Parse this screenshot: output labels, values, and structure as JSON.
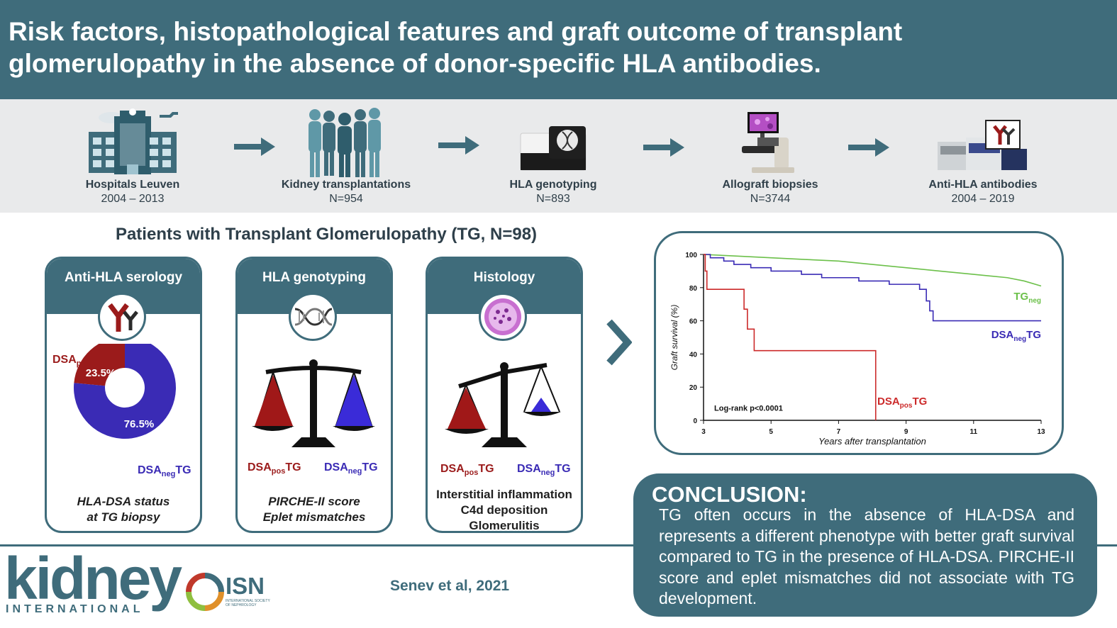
{
  "header": {
    "title_line1": "Risk factors, histopathological features and graft outcome of transplant",
    "title_line2": "glomerulopathy in the absence of donor-specific HLA antibodies."
  },
  "workflow": [
    {
      "label": "Hospitals Leuven",
      "value": "2004 – 2013",
      "icon": "hospital-icon"
    },
    {
      "label": "Kidney transplantations",
      "value": "N=954",
      "icon": "people-icon"
    },
    {
      "label": "HLA genotyping",
      "value": "N=893",
      "icon": "sequencer-icon"
    },
    {
      "label": "Allograft biopsies",
      "value": "N=3744",
      "icon": "microscope-icon"
    },
    {
      "label": "Anti-HLA antibodies",
      "value": "2004 – 2019",
      "icon": "lab-instrument-icon"
    }
  ],
  "cohort_title": "Patients with Transplant Glomerulopathy (TG, N=98)",
  "cards": {
    "serology": {
      "title": "Anti-HLA serology",
      "foot_line1": "HLA-DSA status",
      "foot_line2": "at TG biopsy",
      "pos_pct": "23.5%",
      "neg_pct": "76.5%",
      "icon": "antibody-icon"
    },
    "genotyping": {
      "title": "HLA genotyping",
      "foot_line1": "PIRCHE-II score",
      "foot_line2": "Eplet mismatches",
      "icon": "dna-icon"
    },
    "histology": {
      "title": "Histology",
      "foot_line1": "Interstitial inflammation",
      "foot_line2": "C4d deposition",
      "foot_line3": "Glomerulitis",
      "icon": "glomerulus-icon"
    }
  },
  "dsa_labels": {
    "pos_main": "DSA",
    "pos_sub": "pos",
    "pos_tail": "TG",
    "neg_main": "DSA",
    "neg_sub": "neg",
    "neg_tail": "TG"
  },
  "chart_data": [
    {
      "type": "pie",
      "categories": [
        "DSApos TG",
        "DSAneg TG"
      ],
      "values": [
        23.5,
        76.5
      ],
      "colors": [
        "#9b1b1b",
        "#3a2bb5"
      ]
    },
    {
      "type": "line",
      "xlabel": "Years after transplantation",
      "ylabel": "Graft survival (%)",
      "xlim": [
        3,
        13
      ],
      "ylim": [
        0,
        100
      ],
      "xticks": [
        3,
        5,
        7,
        9,
        11,
        13
      ],
      "yticks": [
        0,
        20,
        40,
        60,
        80,
        100
      ],
      "annotation": "Log-rank p<0.0001",
      "series": [
        {
          "name": "TGneg",
          "main": "TG",
          "sub": "neg",
          "tail": "",
          "color": "#6cc04a",
          "x": [
            3,
            4,
            5,
            6,
            7,
            8,
            9,
            10,
            11,
            12,
            12.5,
            13
          ],
          "y": [
            100,
            99,
            98,
            97,
            96,
            94,
            92,
            90,
            88,
            86,
            84,
            81
          ]
        },
        {
          "name": "DSAnegTG",
          "main": "DSA",
          "sub": "neg",
          "tail": "TG",
          "color": "#3a2bb5",
          "x": [
            3,
            3.2,
            3.6,
            3.9,
            4.4,
            5.0,
            5.9,
            6.5,
            7.6,
            8.5,
            9.4,
            9.6,
            9.7,
            9.8,
            13
          ],
          "y": [
            100,
            98,
            96,
            94,
            92,
            90,
            88,
            86,
            84,
            82,
            79,
            72,
            66,
            60,
            60
          ]
        },
        {
          "name": "DSAposTG",
          "main": "DSA",
          "sub": "pos",
          "tail": "TG",
          "color": "#cc2a2a",
          "x": [
            3,
            3.05,
            3.1,
            4.0,
            4.2,
            4.3,
            4.5,
            8.1,
            8.1
          ],
          "y": [
            100,
            90,
            79,
            79,
            67,
            55,
            42,
            28,
            0
          ]
        }
      ]
    }
  ],
  "conclusion": {
    "title": "CONCLUSION:",
    "body": "TG often occurs in the absence of HLA-DSA and represents a different phenotype with better graft survival compared to TG in the presence of HLA-DSA. PIRCHE-II score and eplet mismatches did not associate with TG development."
  },
  "footer": {
    "journal_main": "kidney",
    "journal_sub": "INTERNATIONAL",
    "society": "ISN",
    "society_sub": "INTERNATIONAL SOCIETY OF NEPHROLOGY",
    "citation": "Senev et al, 2021"
  },
  "colors": {
    "teal": "#3f6c7b",
    "dsa_pos": "#9b1b1b",
    "dsa_neg": "#3a2bb5",
    "tg_neg": "#6cc04a"
  }
}
